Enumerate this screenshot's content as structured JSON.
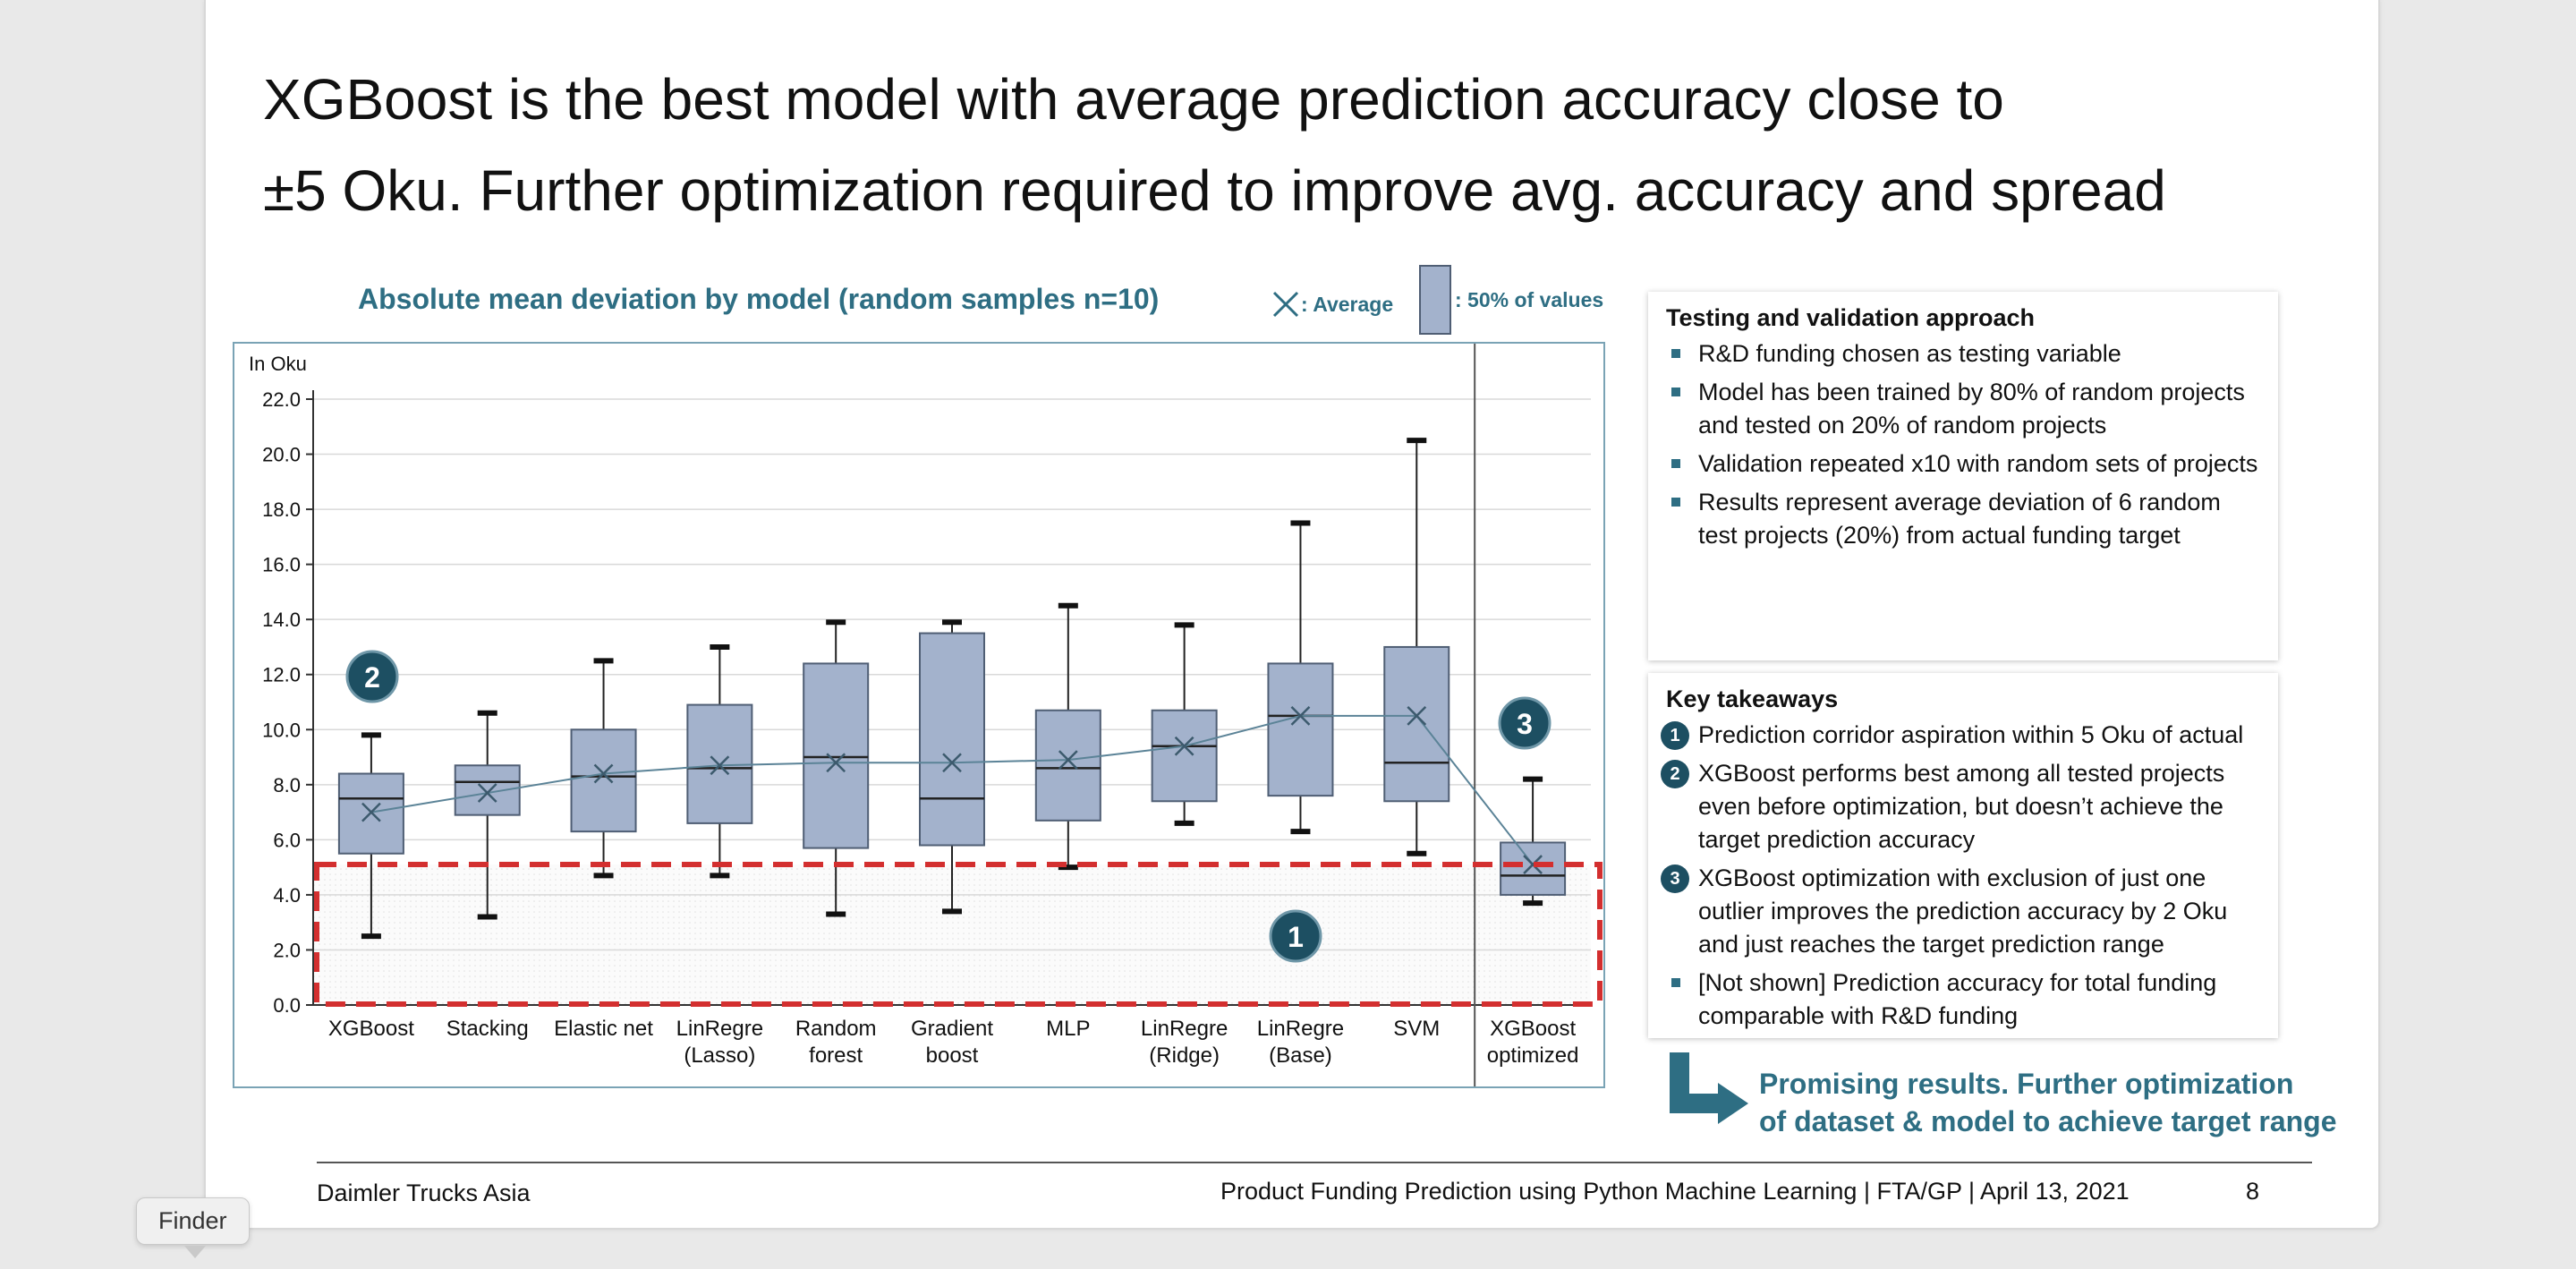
{
  "slide": {
    "title_lines": [
      "XGBoost is the best model with average prediction accuracy close to",
      "±5 Oku. Further optimization required to improve avg. accuracy and spread"
    ],
    "chart_title": "Absolute mean deviation by model (random samples n=10)",
    "legend": {
      "average_label": ": Average",
      "box_label": ": 50% of values"
    },
    "unit_label": "In Oku",
    "markers": [
      "1",
      "2",
      "3"
    ],
    "approach": {
      "heading": "Testing and validation approach",
      "items": [
        "R&D funding chosen as testing variable",
        "Model has been trained by 80% of random projects and tested on 20% of random projects",
        "Validation repeated x10 with random sets of projects",
        "Results represent average deviation of 6 random test projects (20%) from actual funding target"
      ]
    },
    "takeaways": {
      "heading": "Key takeaways",
      "items": [
        {
          "marker": "1",
          "text": "Prediction corridor aspiration within 5 Oku of actual"
        },
        {
          "marker": "2",
          "text": "XGBoost performs best among all tested projects even before optimization, but doesn’t achieve the target prediction accuracy"
        },
        {
          "marker": "3",
          "text": "XGBoost optimization with exclusion of just one outlier improves the prediction accuracy by 2 Oku and just reaches the target prediction range"
        },
        {
          "marker": "",
          "text": "[Not shown] Prediction accuracy for total funding comparable with R&D funding"
        }
      ]
    },
    "promising": [
      "Promising results. Further optimization",
      "of dataset & model to achieve target range"
    ],
    "footer": {
      "left": "Daimler Trucks Asia",
      "center": "Product Funding Prediction using Python Machine Learning | FTA/GP | April 13, 2021",
      "page": "8"
    }
  },
  "dock": {
    "tooltip": "Finder"
  },
  "colors": {
    "accent": "#2e6e83",
    "box_fill": "#a3b2cc",
    "target_dashed": "#d32f2f"
  },
  "chart_data": {
    "type": "boxplot",
    "title": "Absolute mean deviation by model (random samples n=10)",
    "ylabel": "In Oku",
    "ylim": [
      0,
      22
    ],
    "yticks": [
      "0.0",
      "2.0",
      "4.0",
      "6.0",
      "8.0",
      "10.0",
      "12.0",
      "14.0",
      "16.0",
      "18.0",
      "20.0",
      "22.0"
    ],
    "grid": true,
    "target_range": [
      0,
      5.1
    ],
    "categories": [
      [
        "XGBoost"
      ],
      [
        "Stacking"
      ],
      [
        "Elastic net"
      ],
      [
        "LinRegre",
        "(Lasso)"
      ],
      [
        "Random",
        "forest"
      ],
      [
        "Gradient",
        "boost"
      ],
      [
        "MLP"
      ],
      [
        "LinRegre",
        "(Ridge)"
      ],
      [
        "LinRegre",
        "(Base)"
      ],
      [
        "SVM"
      ],
      [
        "XGBoost",
        "optimized"
      ]
    ],
    "boxes": [
      {
        "min": 2.5,
        "q1": 5.5,
        "median": 7.5,
        "q3": 8.4,
        "max": 9.8,
        "mean": 7.0
      },
      {
        "min": 3.2,
        "q1": 6.9,
        "median": 8.1,
        "q3": 8.7,
        "max": 10.6,
        "mean": 7.7
      },
      {
        "min": 4.7,
        "q1": 6.3,
        "median": 8.3,
        "q3": 10.0,
        "max": 12.5,
        "mean": 8.4
      },
      {
        "min": 4.7,
        "q1": 6.6,
        "median": 8.6,
        "q3": 10.9,
        "max": 13.0,
        "mean": 8.7
      },
      {
        "min": 3.3,
        "q1": 5.7,
        "median": 9.0,
        "q3": 12.4,
        "max": 13.9,
        "mean": 8.8
      },
      {
        "min": 3.4,
        "q1": 5.8,
        "median": 7.5,
        "q3": 13.5,
        "max": 13.9,
        "mean": 8.8
      },
      {
        "min": 5.0,
        "q1": 6.7,
        "median": 8.6,
        "q3": 10.7,
        "max": 14.5,
        "mean": 8.9
      },
      {
        "min": 6.6,
        "q1": 7.4,
        "median": 9.4,
        "q3": 10.7,
        "max": 13.8,
        "mean": 9.4
      },
      {
        "min": 6.3,
        "q1": 7.6,
        "median": 10.5,
        "q3": 12.4,
        "max": 17.5,
        "mean": 10.5
      },
      {
        "min": 5.5,
        "q1": 7.4,
        "median": 8.8,
        "q3": 13.0,
        "max": 20.5,
        "mean": 10.5
      },
      {
        "min": 3.7,
        "q1": 4.0,
        "median": 4.7,
        "q3": 5.9,
        "max": 8.2,
        "mean": 5.1
      }
    ]
  }
}
